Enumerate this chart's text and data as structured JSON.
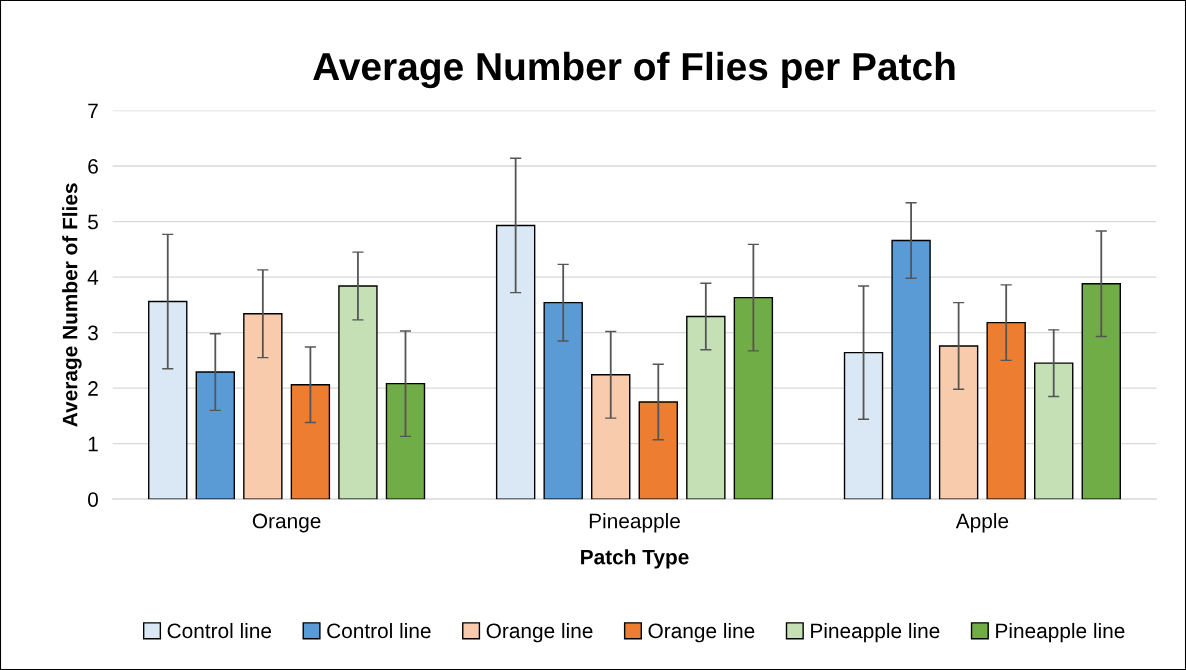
{
  "chart_data": {
    "type": "bar",
    "title": "Average Number of Flies per Patch",
    "xlabel": "Patch Type",
    "ylabel": "Average Number of Flies",
    "categories": [
      "Orange",
      "Pineapple",
      "Apple"
    ],
    "series": [
      {
        "name": "Control line",
        "color": "#dae8f5",
        "values": [
          3.56,
          4.93,
          2.64
        ],
        "errors": [
          1.21,
          1.21,
          1.2
        ]
      },
      {
        "name": "Control line",
        "color": "#5b9bd5",
        "values": [
          2.29,
          3.54,
          4.66
        ],
        "errors": [
          0.69,
          0.69,
          0.68
        ]
      },
      {
        "name": "Orange line",
        "color": "#f8cbad",
        "values": [
          3.34,
          2.24,
          2.76
        ],
        "errors": [
          0.79,
          0.78,
          0.78
        ]
      },
      {
        "name": "Orange line",
        "color": "#ed7d31",
        "values": [
          2.06,
          1.75,
          3.18
        ],
        "errors": [
          0.68,
          0.68,
          0.68
        ]
      },
      {
        "name": "Pineapple line",
        "color": "#c5e0b4",
        "values": [
          3.84,
          3.29,
          2.45
        ],
        "errors": [
          0.61,
          0.6,
          0.6
        ]
      },
      {
        "name": "Pineapple line",
        "color": "#70ad47",
        "values": [
          2.08,
          3.63,
          3.88
        ],
        "errors": [
          0.95,
          0.96,
          0.95
        ]
      }
    ],
    "ylim": [
      0,
      7
    ],
    "yticks": [
      0,
      1,
      2,
      3,
      4,
      5,
      6,
      7
    ],
    "grid": "y",
    "legend": "bottom"
  }
}
